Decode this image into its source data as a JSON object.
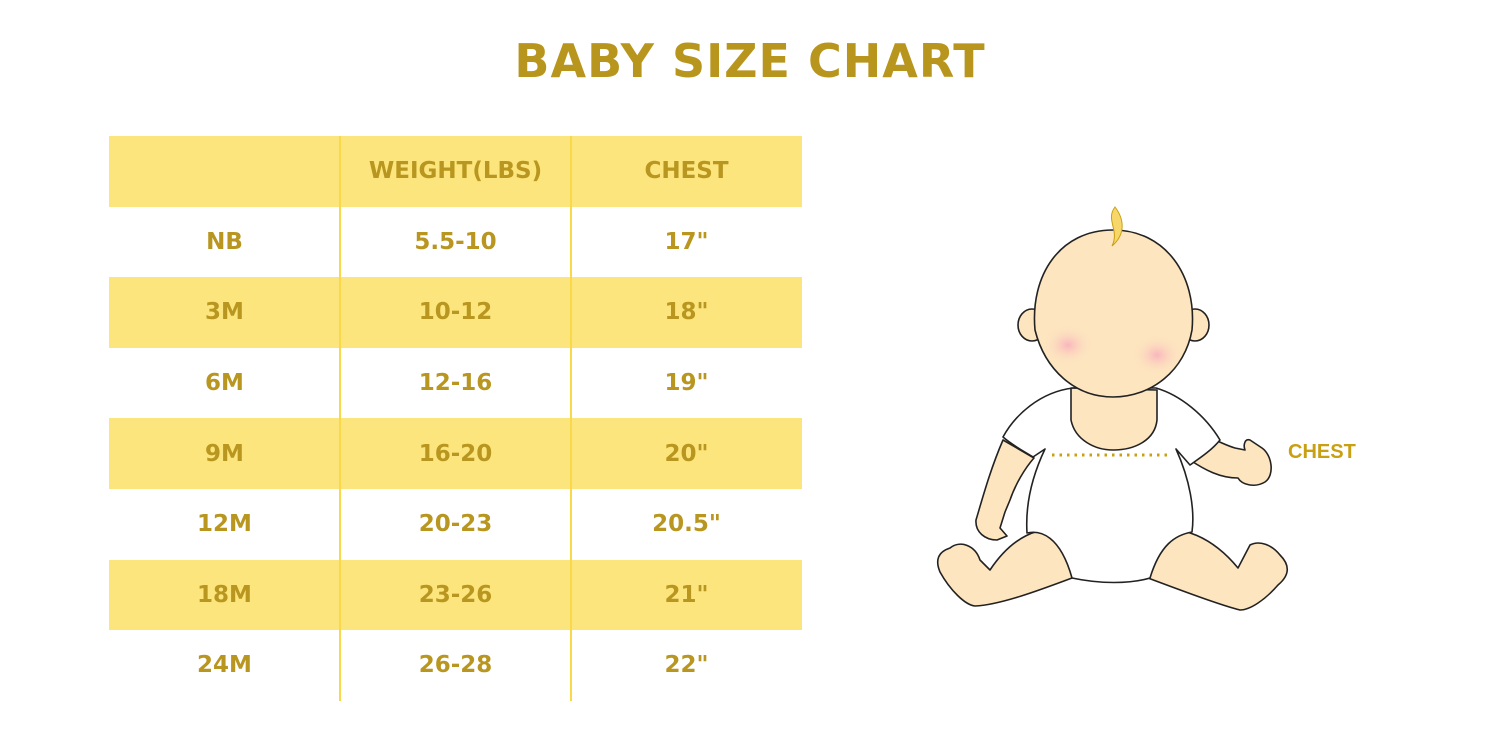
{
  "title": "BABY SIZE CHART",
  "table": {
    "headers": [
      "",
      "WEIGHT(LBS)",
      "CHEST"
    ],
    "rows": [
      [
        "NB",
        "5.5-10",
        "17\""
      ],
      [
        "3M",
        "10-12",
        "18\""
      ],
      [
        "6M",
        "12-16",
        "19\""
      ],
      [
        "9M",
        "16-20",
        "20\""
      ],
      [
        "12M",
        "20-23",
        "20.5\""
      ],
      [
        "18M",
        "23-26",
        "21\""
      ],
      [
        "24M",
        "26-28",
        "22\""
      ]
    ]
  },
  "illustration": {
    "label": "CHEST",
    "icon": "baby-illustration"
  },
  "colors": {
    "accent": "#b8961d",
    "band": "#fbe57c",
    "divider": "#f9d84a",
    "skin": "#fde5bf"
  }
}
